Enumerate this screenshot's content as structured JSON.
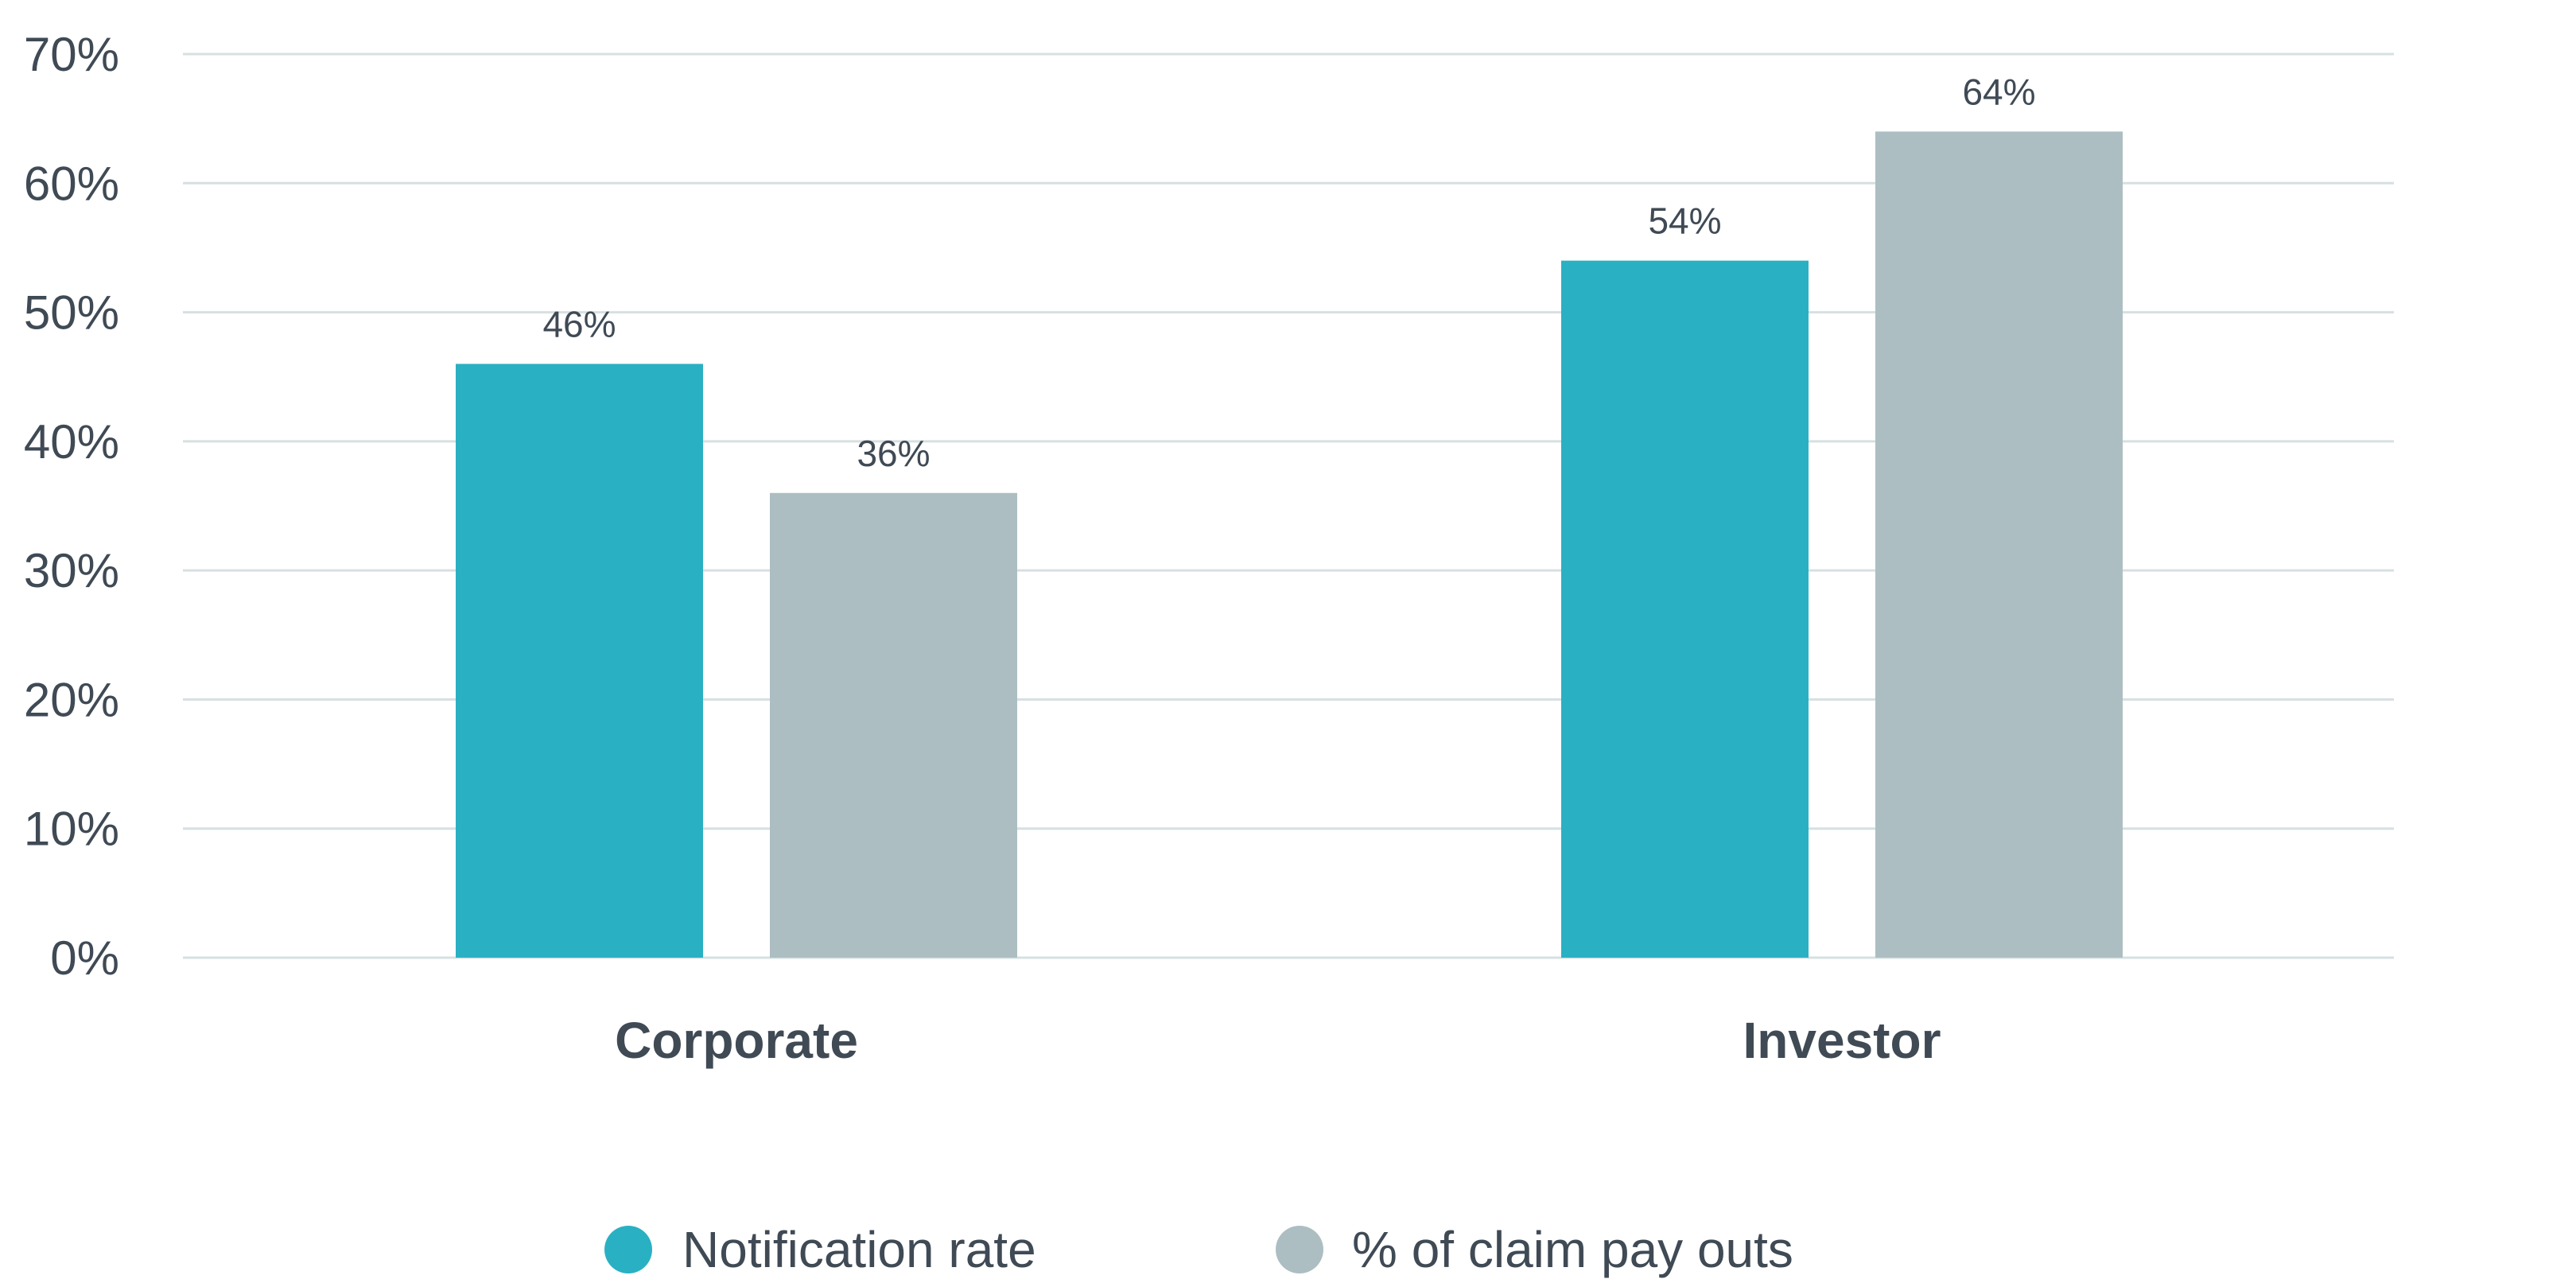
{
  "chart_data": {
    "type": "bar",
    "categories": [
      "Corporate",
      "Investor"
    ],
    "series": [
      {
        "name": "Notification rate",
        "values": [
          46,
          54
        ],
        "color": "#2ab0c3",
        "labels": [
          "46%",
          "54%"
        ]
      },
      {
        "name": "% of claim pay outs",
        "values": [
          36,
          64
        ],
        "color": "#acbec1",
        "labels": [
          "36%",
          "64%"
        ]
      }
    ],
    "title": "",
    "xlabel": "",
    "ylabel": "",
    "ylim": [
      0,
      70
    ],
    "yticks": [
      0,
      10,
      20,
      30,
      40,
      50,
      60,
      70
    ],
    "ytick_labels": [
      "0%",
      "10%",
      "20%",
      "30%",
      "40%",
      "50%",
      "60%",
      "70%"
    ],
    "grid": true,
    "legend_position": "bottom-center",
    "colors": {
      "grid": "#d6e0e2",
      "text": "#3f4a55"
    }
  }
}
